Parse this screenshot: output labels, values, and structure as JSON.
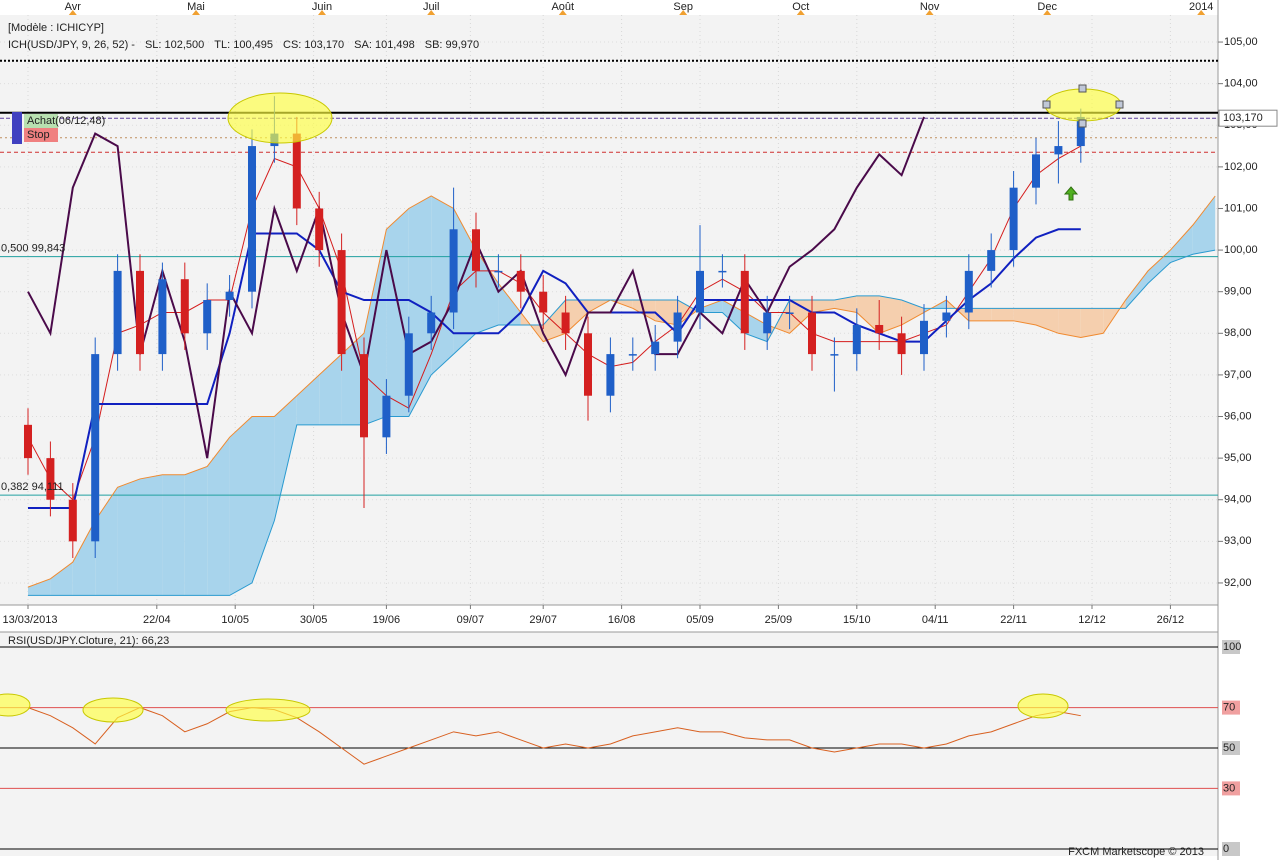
{
  "chart_data": {
    "type": "candlestick",
    "title": "[Modèle : ICHICYP]",
    "indicator_label": "ICH(USD/JPY, 9, 26, 52) -",
    "readouts": [
      {
        "label": "SL: 102,500",
        "color": "#c00000"
      },
      {
        "label": "TL: 100,495",
        "color": "#0000c0"
      },
      {
        "label": "CS: 103,170",
        "color": "#3a003a"
      },
      {
        "label": "SA: 101,498",
        "color": "#f08020"
      },
      {
        "label": "SB: 99,970",
        "color": "#2090d0"
      }
    ],
    "signals": [
      {
        "label": "Achat(06/12,48)",
        "color": "#b8e0b0"
      },
      {
        "label": "Stop",
        "color": "#f08080"
      }
    ],
    "footer": "FXCM Marketscope © 2013",
    "xlim": [
      -5,
      212.5
    ],
    "ylim": [
      91.47,
      105.65
    ],
    "xticks": [
      {
        "value": 0,
        "label": "13/03/2013"
      },
      {
        "value": 23,
        "label": "22/04"
      },
      {
        "value": 37,
        "label": "10/05"
      },
      {
        "value": 51,
        "label": "30/05"
      },
      {
        "value": 64,
        "label": "19/06"
      },
      {
        "value": 79,
        "label": "09/07"
      },
      {
        "value": 92,
        "label": "29/07"
      },
      {
        "value": 106,
        "label": "16/08"
      },
      {
        "value": 120,
        "label": "05/09"
      },
      {
        "value": 134,
        "label": "25/09"
      },
      {
        "value": 148,
        "label": "15/10"
      },
      {
        "value": 162,
        "label": "04/11"
      },
      {
        "value": 176,
        "label": "22/11"
      },
      {
        "value": 190,
        "label": "12/12"
      },
      {
        "value": 204,
        "label": "26/12"
      }
    ],
    "month_ticks": [
      {
        "value": 8,
        "label": "Avr"
      },
      {
        "value": 30,
        "label": "Mai"
      },
      {
        "value": 52.5,
        "label": "Juin"
      },
      {
        "value": 72,
        "label": "Juil"
      },
      {
        "value": 95.5,
        "label": "Août"
      },
      {
        "value": 117,
        "label": "Sep"
      },
      {
        "value": 138,
        "label": "Oct"
      },
      {
        "value": 161,
        "label": "Nov"
      },
      {
        "value": 182,
        "label": "Dec"
      },
      {
        "value": 209.5,
        "label": "2014"
      }
    ],
    "yticks": [
      {
        "value": 92,
        "label": "92,00"
      },
      {
        "value": 93,
        "label": "93,00"
      },
      {
        "value": 94,
        "label": "94,00"
      },
      {
        "value": 95,
        "label": "95,00"
      },
      {
        "value": 96,
        "label": "96,00"
      },
      {
        "value": 97,
        "label": "97,00"
      },
      {
        "value": 98,
        "label": "98,00"
      },
      {
        "value": 99,
        "label": "99,00"
      },
      {
        "value": 100,
        "label": "100,00"
      },
      {
        "value": 101,
        "label": "101,00"
      },
      {
        "value": 102,
        "label": "102,00"
      },
      {
        "value": 103,
        "label": "103,00"
      },
      {
        "value": 104,
        "label": "104,00"
      },
      {
        "value": 105,
        "label": "105,00"
      }
    ],
    "grid": true,
    "up_color": "#1f5fc8",
    "down_color": "#d42020",
    "x": [
      0,
      4,
      8,
      12,
      16,
      20,
      24,
      28,
      32,
      36,
      40,
      44,
      48,
      52,
      56,
      60,
      64,
      68,
      72,
      76,
      80,
      84,
      88,
      92,
      96,
      100,
      104,
      108,
      112,
      116,
      120,
      124,
      128,
      132,
      136,
      140,
      144,
      148,
      152,
      156,
      160,
      164,
      168,
      172,
      176,
      180,
      184,
      188,
      192,
      196,
      200,
      204,
      208,
      212
    ],
    "open": [
      95.8,
      95.0,
      94.0,
      93.0,
      97.5,
      99.5,
      97.5,
      99.3,
      98.0,
      98.8,
      99.0,
      102.5,
      102.8,
      101.0,
      100.0,
      97.5,
      95.5,
      96.5,
      98.0,
      98.5,
      100.5,
      99.5,
      99.5,
      99.0,
      98.5,
      98.0,
      96.5,
      97.5,
      97.5,
      97.8,
      98.5,
      99.5,
      99.5,
      98.0,
      98.5,
      98.5,
      97.5,
      97.5,
      98.2,
      98.0,
      97.5,
      98.3,
      98.5,
      99.5,
      100.0,
      101.5,
      102.3,
      102.5,
      null,
      null,
      null,
      null,
      null,
      null
    ],
    "high": [
      96.2,
      95.4,
      94.4,
      97.9,
      99.9,
      99.9,
      99.7,
      99.7,
      99.2,
      99.4,
      102.9,
      103.7,
      103.2,
      101.4,
      100.4,
      97.9,
      96.9,
      98.4,
      98.9,
      101.5,
      100.9,
      99.9,
      99.9,
      99.4,
      98.9,
      98.4,
      97.9,
      97.9,
      98.2,
      98.9,
      100.6,
      99.9,
      99.9,
      98.9,
      98.9,
      98.9,
      97.9,
      98.6,
      98.8,
      98.4,
      98.7,
      98.9,
      99.9,
      100.4,
      101.9,
      102.7,
      103.1,
      103.4,
      null,
      null,
      null,
      null,
      null,
      null
    ],
    "low": [
      94.6,
      93.6,
      92.6,
      92.6,
      97.1,
      97.1,
      97.1,
      97.6,
      97.6,
      98.4,
      98.6,
      102.1,
      100.6,
      99.6,
      97.1,
      93.8,
      95.1,
      96.1,
      97.6,
      98.1,
      99.1,
      99.1,
      98.6,
      98.1,
      97.6,
      95.9,
      96.1,
      97.1,
      97.1,
      97.4,
      98.1,
      99.1,
      97.6,
      97.6,
      98.1,
      97.1,
      96.6,
      97.1,
      97.6,
      97.0,
      97.1,
      97.9,
      98.1,
      99.1,
      99.6,
      101.1,
      101.6,
      102.1,
      null,
      null,
      null,
      null,
      null,
      null
    ],
    "close": [
      95.0,
      94.0,
      93.0,
      97.5,
      99.5,
      97.5,
      99.3,
      98.0,
      98.8,
      99.0,
      102.5,
      102.8,
      101.0,
      100.0,
      97.5,
      95.5,
      96.5,
      98.0,
      98.5,
      100.5,
      99.5,
      99.5,
      99.0,
      98.5,
      98.0,
      96.5,
      97.5,
      97.5,
      97.8,
      98.5,
      99.5,
      99.5,
      98.0,
      98.5,
      98.5,
      97.5,
      97.5,
      98.2,
      98.0,
      97.5,
      98.3,
      98.5,
      99.5,
      100.0,
      101.5,
      102.3,
      102.5,
      103.2,
      null,
      null,
      null,
      null,
      null,
      null
    ],
    "cloud": {
      "above_color": "#a8d4ec",
      "below_color": "#f5cfae"
    },
    "series": [
      {
        "color": "#f08a30",
        "width": 1,
        "values": [
          91.9,
          92.1,
          92.5,
          93.5,
          94.3,
          94.5,
          94.6,
          94.6,
          94.8,
          95.5,
          96.0,
          96.0,
          96.5,
          97.0,
          97.5,
          98.0,
          100.5,
          101.0,
          101.3,
          101.0,
          100.0,
          99.2,
          98.5,
          97.8,
          98.0,
          98.5,
          98.8,
          98.6,
          98.3,
          98.2,
          98.6,
          98.8,
          98.5,
          98.2,
          98.0,
          98.5,
          98.6,
          98.5,
          98.0,
          98.2,
          98.5,
          98.8,
          98.3,
          98.3,
          98.3,
          98.2,
          98.0,
          97.9,
          98.0,
          98.8,
          99.5,
          100.0,
          100.6,
          101.3
        ]
      },
      {
        "color": "#2a9ad0",
        "width": 1,
        "values": [
          91.7,
          91.7,
          91.7,
          91.7,
          91.7,
          91.7,
          91.7,
          91.7,
          91.7,
          91.7,
          92.0,
          93.5,
          95.8,
          95.8,
          95.8,
          95.8,
          96.0,
          96.0,
          97.0,
          97.5,
          98.0,
          98.2,
          98.2,
          98.2,
          98.8,
          98.8,
          98.8,
          98.8,
          98.8,
          98.8,
          98.5,
          98.5,
          98.0,
          97.8,
          98.8,
          98.8,
          98.8,
          98.9,
          98.9,
          98.8,
          98.6,
          98.6,
          98.6,
          98.6,
          98.6,
          98.6,
          98.6,
          98.6,
          98.6,
          98.6,
          99.2,
          99.7,
          99.9,
          100.0
        ]
      },
      {
        "color": "#d41c1c",
        "width": 1,
        "values": [
          95.5,
          94.5,
          94.0,
          95.5,
          98.0,
          98.2,
          98.5,
          98.5,
          98.8,
          98.8,
          101.0,
          102.2,
          102.0,
          101.0,
          99.5,
          97.0,
          96.5,
          96.2,
          97.5,
          99.0,
          99.5,
          99.5,
          99.2,
          98.5,
          98.0,
          97.5,
          97.2,
          97.3,
          97.8,
          98.2,
          99.0,
          99.3,
          99.0,
          98.5,
          98.5,
          98.0,
          97.8,
          97.8,
          97.8,
          97.8,
          98.0,
          98.2,
          99.0,
          99.8,
          101.0,
          101.8,
          102.2,
          102.5,
          null,
          null,
          null,
          null,
          null,
          null
        ]
      },
      {
        "color": "#1020c0",
        "width": 2,
        "values": [
          93.8,
          93.8,
          93.8,
          96.3,
          96.3,
          96.3,
          96.3,
          96.3,
          96.3,
          98.0,
          100.4,
          100.4,
          100.4,
          100.0,
          99.0,
          98.8,
          98.8,
          98.8,
          98.5,
          98.0,
          98.0,
          98.0,
          98.5,
          99.5,
          99.2,
          98.5,
          98.5,
          98.5,
          98.5,
          98.0,
          98.8,
          98.8,
          98.8,
          98.8,
          98.8,
          98.5,
          98.5,
          98.2,
          98.0,
          97.8,
          97.8,
          98.3,
          98.8,
          99.2,
          99.8,
          100.3,
          100.5,
          100.5,
          null,
          null,
          null,
          null,
          null,
          null
        ]
      },
      {
        "color": "#4a0a4a",
        "width": 2,
        "values": [
          99.0,
          98.0,
          101.5,
          102.8,
          102.5,
          97.5,
          99.5,
          97.8,
          95.0,
          99.0,
          98.0,
          101.0,
          99.5,
          101.0,
          98.5,
          97.0,
          100.0,
          97.5,
          97.8,
          98.8,
          100.2,
          99.0,
          99.5,
          98.0,
          97.0,
          98.5,
          98.5,
          99.5,
          97.5,
          97.5,
          98.5,
          98.0,
          99.3,
          98.5,
          99.6,
          100.0,
          100.5,
          101.5,
          102.3,
          101.8,
          103.2,
          null,
          null,
          null,
          null,
          null,
          null,
          null,
          null,
          null,
          null,
          null,
          null,
          null
        ]
      }
    ],
    "hlines": [
      {
        "value": 104.55,
        "color": "#000000",
        "dash": "2 2",
        "width": 2
      },
      {
        "value": 103.3,
        "color": "#000000",
        "dash": "",
        "width": 2
      },
      {
        "value": 102.7,
        "color": "#c09060",
        "dash": "2 3",
        "width": 1
      },
      {
        "value": 102.35,
        "color": "#d03030",
        "dash": "4 3",
        "width": 1
      }
    ],
    "last_price": {
      "value": 103.17,
      "label": "103,170",
      "color": "#6040a0"
    },
    "fibo_levels": [
      {
        "value": 99.843,
        "label": "0,500 99,843",
        "color": "#20a0a0"
      },
      {
        "value": 94.111,
        "label": "0,382 94,111",
        "color": "#20a0a0"
      }
    ],
    "rsi": {
      "title": "RSI(USD/JPY.Cloture, 21): 66,23",
      "color": "#d86020",
      "ylim": [
        0,
        100
      ],
      "yticks": [
        100,
        70,
        50,
        30,
        0
      ],
      "level_colors": [
        "#000000",
        "#e05050",
        "#000000",
        "#e05050",
        "#000000"
      ],
      "values": [
        70,
        66,
        60,
        52,
        65,
        70,
        66,
        58,
        62,
        68,
        70,
        69,
        65,
        58,
        50,
        42,
        46,
        50,
        54,
        58,
        56,
        58,
        54,
        50,
        52,
        50,
        52,
        56,
        58,
        60,
        58,
        58,
        55,
        54,
        54,
        50,
        48,
        50,
        52,
        52,
        50,
        52,
        56,
        58,
        62,
        66,
        68,
        66,
        null,
        null,
        null,
        null,
        null,
        null
      ]
    }
  }
}
